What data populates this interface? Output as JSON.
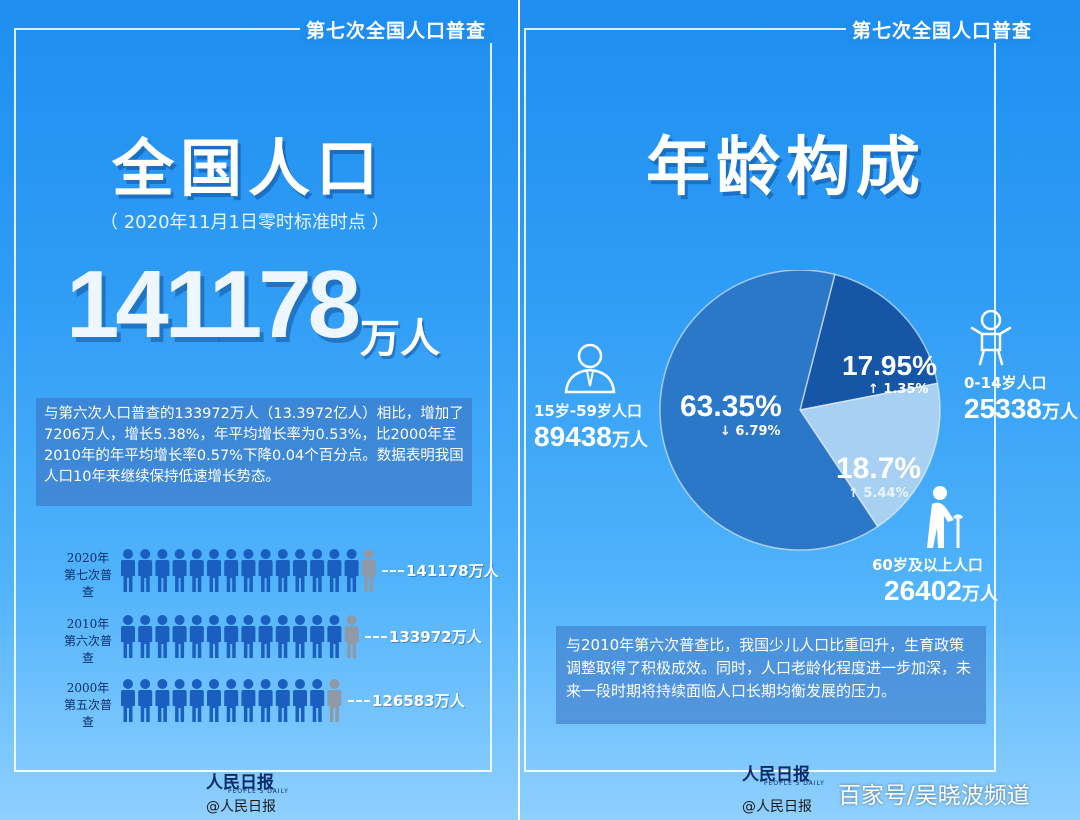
{
  "left": {
    "header": "第七次全国人口普查",
    "title": "全国人口",
    "subtitle": "（ 2020年11月1日零时标准时点 ）",
    "population_number": "141178",
    "population_unit": "万人",
    "description": "与第六次人口普查的133972万人（13.3972亿人）相比，增加了7206万人，增长5.38%，年平均增长率为0.53%，比2000年至2010年的年平均增长率0.57%下降0.04个百分点。数据表明我国人口10年来继续保持低速增长势态。",
    "logo": "人民日报",
    "logo_sub": "PEOPLE'S DAILY",
    "weibo": "@人民日报"
  },
  "chart_data": [
    {
      "type": "bar",
      "categories": [
        "2020年 第七次普查",
        "2010年 第六次普查",
        "2000年 第五次普查"
      ],
      "series": [
        {
          "values": [
            141178,
            133972,
            126583
          ]
        }
      ],
      "data_labels": [
        "141178万人",
        "133972万人",
        "126583万人"
      ],
      "rows": [
        {
          "year": "2020年",
          "census": "第七次普查",
          "value": 141178,
          "label": "141178万人",
          "icons": 14.4
        },
        {
          "year": "2010年",
          "census": "第六次普查",
          "value": 133972,
          "label": "133972万人",
          "icons": 13.7
        },
        {
          "year": "2000年",
          "census": "第五次普查",
          "value": 126583,
          "label": "126583万人",
          "icons": 12.9
        }
      ],
      "colors": {
        "icon": "#1a5fbf",
        "icon_partial": "#8e9aa8"
      }
    },
    {
      "type": "pie",
      "title": "年龄构成",
      "slices": [
        {
          "group": "15岁-59岁人口",
          "percent": 63.35,
          "percent_label": "63.35%",
          "change": "↓ 6.79%",
          "population": "89438",
          "unit": "万人",
          "color": "#2c78c8"
        },
        {
          "group": "0-14岁人口",
          "percent": 17.95,
          "percent_label": "17.95%",
          "change": "↑ 1.35%",
          "population": "25338",
          "unit": "万人",
          "color": "#1556a6"
        },
        {
          "group": "60岁及以上人口",
          "percent": 18.7,
          "percent_label": "18.7%",
          "change": "↑ 5.44%",
          "population": "26402",
          "unit": "万人",
          "color": "#a8d0f2"
        }
      ]
    }
  ],
  "right": {
    "header": "第七次全国人口普查",
    "title": "年龄构成",
    "description": "与2010年第六次普查比，我国少儿人口比重回升，生育政策调整取得了积极成效。同时，人口老龄化程度进一步加深，未来一段时期将持续面临人口长期均衡发展的压力。",
    "logo": "人民日报",
    "logo_sub": "PEOPLE'S DAILY",
    "weibo": "@人民日报"
  },
  "watermark": "百家号/吴晓波频道"
}
